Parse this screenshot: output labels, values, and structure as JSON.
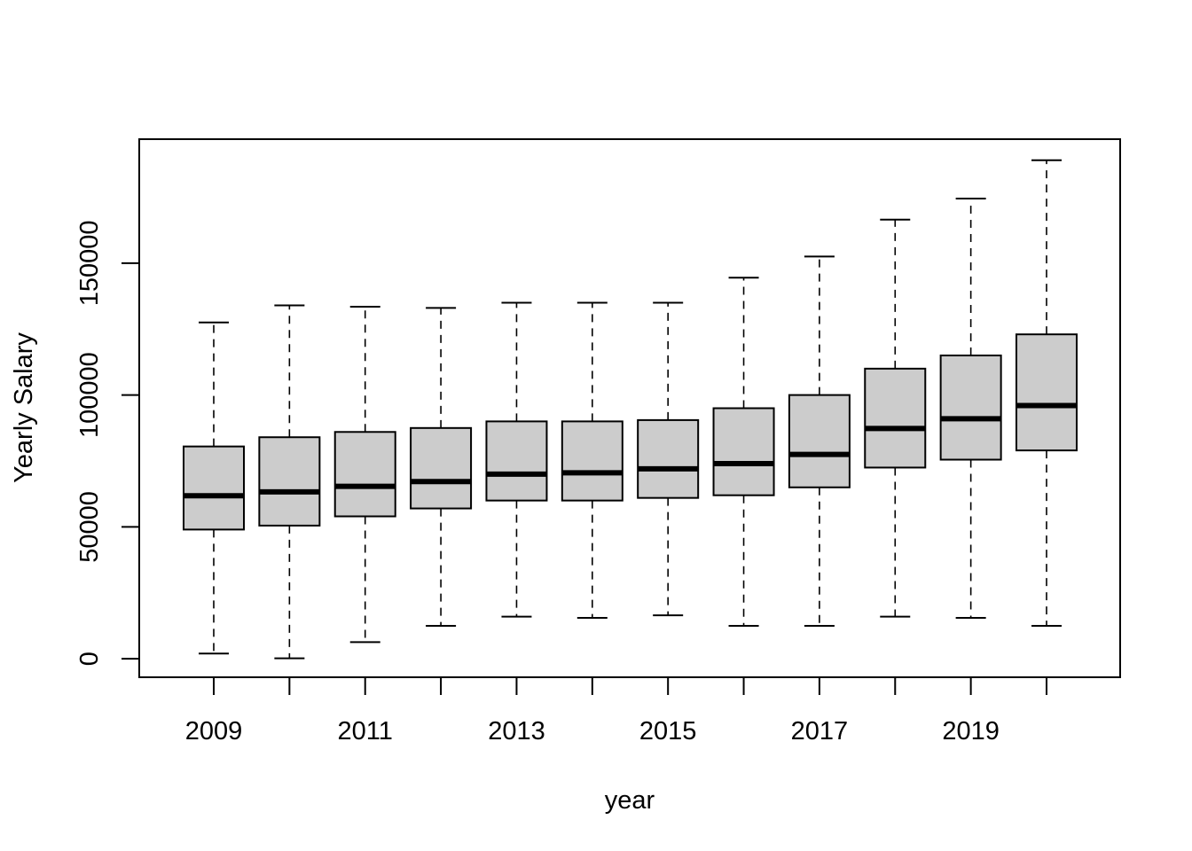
{
  "chart_data": {
    "type": "boxplot",
    "title": "",
    "xlabel": "year",
    "ylabel": "Yearly Salary",
    "categories": [
      "2009",
      "2010",
      "2011",
      "2012",
      "2013",
      "2014",
      "2015",
      "2016",
      "2017",
      "2018",
      "2019",
      "2020"
    ],
    "x_tick_labels_shown": [
      "2009",
      "",
      "2011",
      "",
      "2013",
      "",
      "2015",
      "",
      "2017",
      "",
      "2019",
      ""
    ],
    "boxes": [
      {
        "category": "2009",
        "whisker_low": 2000,
        "q1": 49000,
        "median": 61800,
        "q3": 80500,
        "whisker_high": 127500
      },
      {
        "category": "2010",
        "whisker_low": 200,
        "q1": 50500,
        "median": 63300,
        "q3": 84000,
        "whisker_high": 134000
      },
      {
        "category": "2011",
        "whisker_low": 6300,
        "q1": 54000,
        "median": 65400,
        "q3": 86000,
        "whisker_high": 133500
      },
      {
        "category": "2012",
        "whisker_low": 12500,
        "q1": 57000,
        "median": 67200,
        "q3": 87500,
        "whisker_high": 133000
      },
      {
        "category": "2013",
        "whisker_low": 16000,
        "q1": 60000,
        "median": 70000,
        "q3": 90000,
        "whisker_high": 135000
      },
      {
        "category": "2014",
        "whisker_low": 15500,
        "q1": 60000,
        "median": 70500,
        "q3": 90000,
        "whisker_high": 135000
      },
      {
        "category": "2015",
        "whisker_low": 16500,
        "q1": 61000,
        "median": 72000,
        "q3": 90500,
        "whisker_high": 135000
      },
      {
        "category": "2016",
        "whisker_low": 12500,
        "q1": 62000,
        "median": 74000,
        "q3": 95000,
        "whisker_high": 144500
      },
      {
        "category": "2017",
        "whisker_low": 12500,
        "q1": 65000,
        "median": 77500,
        "q3": 100000,
        "whisker_high": 152500
      },
      {
        "category": "2018",
        "whisker_low": 16000,
        "q1": 72500,
        "median": 87300,
        "q3": 110000,
        "whisker_high": 166500
      },
      {
        "category": "2019",
        "whisker_low": 15500,
        "q1": 75500,
        "median": 91000,
        "q3": 115000,
        "whisker_high": 174500
      },
      {
        "category": "2020",
        "whisker_low": 12500,
        "q1": 79000,
        "median": 96000,
        "q3": 123000,
        "whisker_high": 189000
      }
    ],
    "yticks": [
      0,
      50000,
      100000,
      150000
    ],
    "ytick_labels": [
      "0",
      "50000",
      "100000",
      "150000"
    ],
    "ylim": [
      -7000,
      197000
    ],
    "grid": false,
    "legend": "none",
    "colors": {
      "box_fill": "#cccccc",
      "line": "#000000",
      "background": "#ffffff"
    }
  }
}
